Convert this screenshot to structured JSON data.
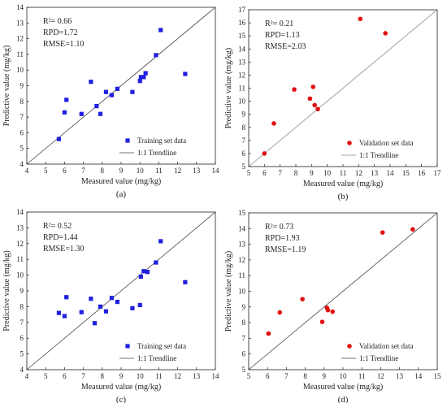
{
  "chart_data": [
    {
      "type": "scatter",
      "caption": "(a)",
      "xlabel": "Measured value (mg/kg)",
      "ylabel": "Predictive value (mg/kg)",
      "xlim": [
        4,
        14
      ],
      "ylim": [
        4,
        14
      ],
      "xticks": [
        "4",
        "5",
        "6",
        "7",
        "8",
        "9",
        "10",
        "11",
        "12",
        "13",
        "14"
      ],
      "yticks": [
        "4",
        "5",
        "6",
        "7",
        "8",
        "9",
        "10",
        "11",
        "12",
        "13",
        "14"
      ],
      "stats": [
        "R²= 0.66",
        "RPD=1.72",
        "RMSE=1.10"
      ],
      "legend": {
        "position": "bottom-right",
        "series_label": "Training set data",
        "line_label": "1:1 Trendline"
      },
      "marker": "square",
      "color": "#1f1fe0",
      "line_color": "#444444",
      "points": [
        [
          5.7,
          5.6
        ],
        [
          6.0,
          7.3
        ],
        [
          6.1,
          8.1
        ],
        [
          6.9,
          7.2
        ],
        [
          7.4,
          9.25
        ],
        [
          7.7,
          7.7
        ],
        [
          7.9,
          7.2
        ],
        [
          8.2,
          8.6
        ],
        [
          8.5,
          8.4
        ],
        [
          8.8,
          8.8
        ],
        [
          9.6,
          8.6
        ],
        [
          10.0,
          9.3
        ],
        [
          10.05,
          9.55
        ],
        [
          10.2,
          9.55
        ],
        [
          10.3,
          9.8
        ],
        [
          10.85,
          10.95
        ],
        [
          11.1,
          12.55
        ],
        [
          12.4,
          9.75
        ]
      ]
    },
    {
      "type": "scatter",
      "caption": "(b)",
      "xlabel": "Measured value (mg/kg)",
      "ylabel": "Predictive value (mg/kg)",
      "xlim": [
        5,
        17
      ],
      "ylim": [
        5,
        17
      ],
      "xticks": [
        "5",
        "6",
        "7",
        "8",
        "9",
        "10",
        "11",
        "12",
        "13",
        "14",
        "15",
        "16",
        "17"
      ],
      "yticks": [
        "5",
        "6",
        "7",
        "8",
        "9",
        "10",
        "11",
        "12",
        "13",
        "14",
        "15",
        "16",
        "17"
      ],
      "stats": [
        "R²= 0.21",
        "RPD=1.13",
        "RMSE=2.03"
      ],
      "legend": {
        "position": "bottom-right",
        "series_label": "Validation set data",
        "line_label": "1:1 Trendline"
      },
      "marker": "circle",
      "color": "#e01010",
      "line_color": "#888888",
      "points": [
        [
          6.0,
          6.0
        ],
        [
          6.6,
          8.3
        ],
        [
          7.9,
          10.9
        ],
        [
          8.9,
          10.2
        ],
        [
          9.1,
          11.1
        ],
        [
          9.2,
          9.7
        ],
        [
          9.4,
          9.4
        ],
        [
          12.1,
          16.3
        ],
        [
          13.7,
          15.2
        ]
      ]
    },
    {
      "type": "scatter",
      "caption": "(c)",
      "xlabel": "Measured value (mg/kg)",
      "ylabel": "Predictive value (mg/kg)",
      "xlim": [
        4,
        14
      ],
      "ylim": [
        4,
        14
      ],
      "xticks": [
        "4",
        "5",
        "6",
        "7",
        "8",
        "9",
        "10",
        "11",
        "12",
        "13",
        "14"
      ],
      "yticks": [
        "4",
        "5",
        "6",
        "7",
        "8",
        "9",
        "10",
        "11",
        "12",
        "13",
        "14"
      ],
      "stats": [
        "R²= 0.52",
        "RPD=1.44",
        "RMSE=1.30"
      ],
      "legend": {
        "position": "bottom-right",
        "series_label": "Training set data",
        "line_label": "1:1 Trendline"
      },
      "marker": "square",
      "color": "#1f1fe0",
      "line_color": "#444444",
      "points": [
        [
          5.7,
          7.6
        ],
        [
          6.0,
          7.4
        ],
        [
          6.1,
          8.6
        ],
        [
          6.9,
          7.65
        ],
        [
          7.4,
          8.5
        ],
        [
          7.6,
          6.95
        ],
        [
          7.9,
          8.0
        ],
        [
          8.2,
          7.7
        ],
        [
          8.5,
          8.55
        ],
        [
          8.8,
          8.3
        ],
        [
          9.6,
          7.9
        ],
        [
          10.0,
          8.1
        ],
        [
          10.05,
          9.9
        ],
        [
          10.2,
          10.25
        ],
        [
          10.4,
          10.2
        ],
        [
          10.85,
          10.8
        ],
        [
          11.1,
          12.15
        ],
        [
          12.4,
          9.55
        ]
      ]
    },
    {
      "type": "scatter",
      "caption": "(d)",
      "xlabel": "Measured value (mg/kg)",
      "ylabel": "Predictive value (mg/kg)",
      "xlim": [
        5,
        15
      ],
      "ylim": [
        5,
        15
      ],
      "xticks": [
        "5",
        "6",
        "7",
        "8",
        "9",
        "10",
        "11",
        "12",
        "13",
        "14",
        "15"
      ],
      "yticks": [
        "5",
        "6",
        "7",
        "8",
        "9",
        "10",
        "11",
        "12",
        "13",
        "14",
        "15"
      ],
      "stats": [
        "R²= 0.73",
        "RPD=1.93",
        "RMSE=1.19"
      ],
      "legend": {
        "position": "bottom-right",
        "series_label": "Validation set data",
        "line_label": "1:1 Trendline"
      },
      "marker": "circle",
      "color": "#e01010",
      "line_color": "#444444",
      "points": [
        [
          6.05,
          7.3
        ],
        [
          6.65,
          8.65
        ],
        [
          7.85,
          9.5
        ],
        [
          8.9,
          8.05
        ],
        [
          9.15,
          8.95
        ],
        [
          9.2,
          8.8
        ],
        [
          9.45,
          8.7
        ],
        [
          12.1,
          13.75
        ],
        [
          13.7,
          13.95
        ]
      ]
    }
  ]
}
